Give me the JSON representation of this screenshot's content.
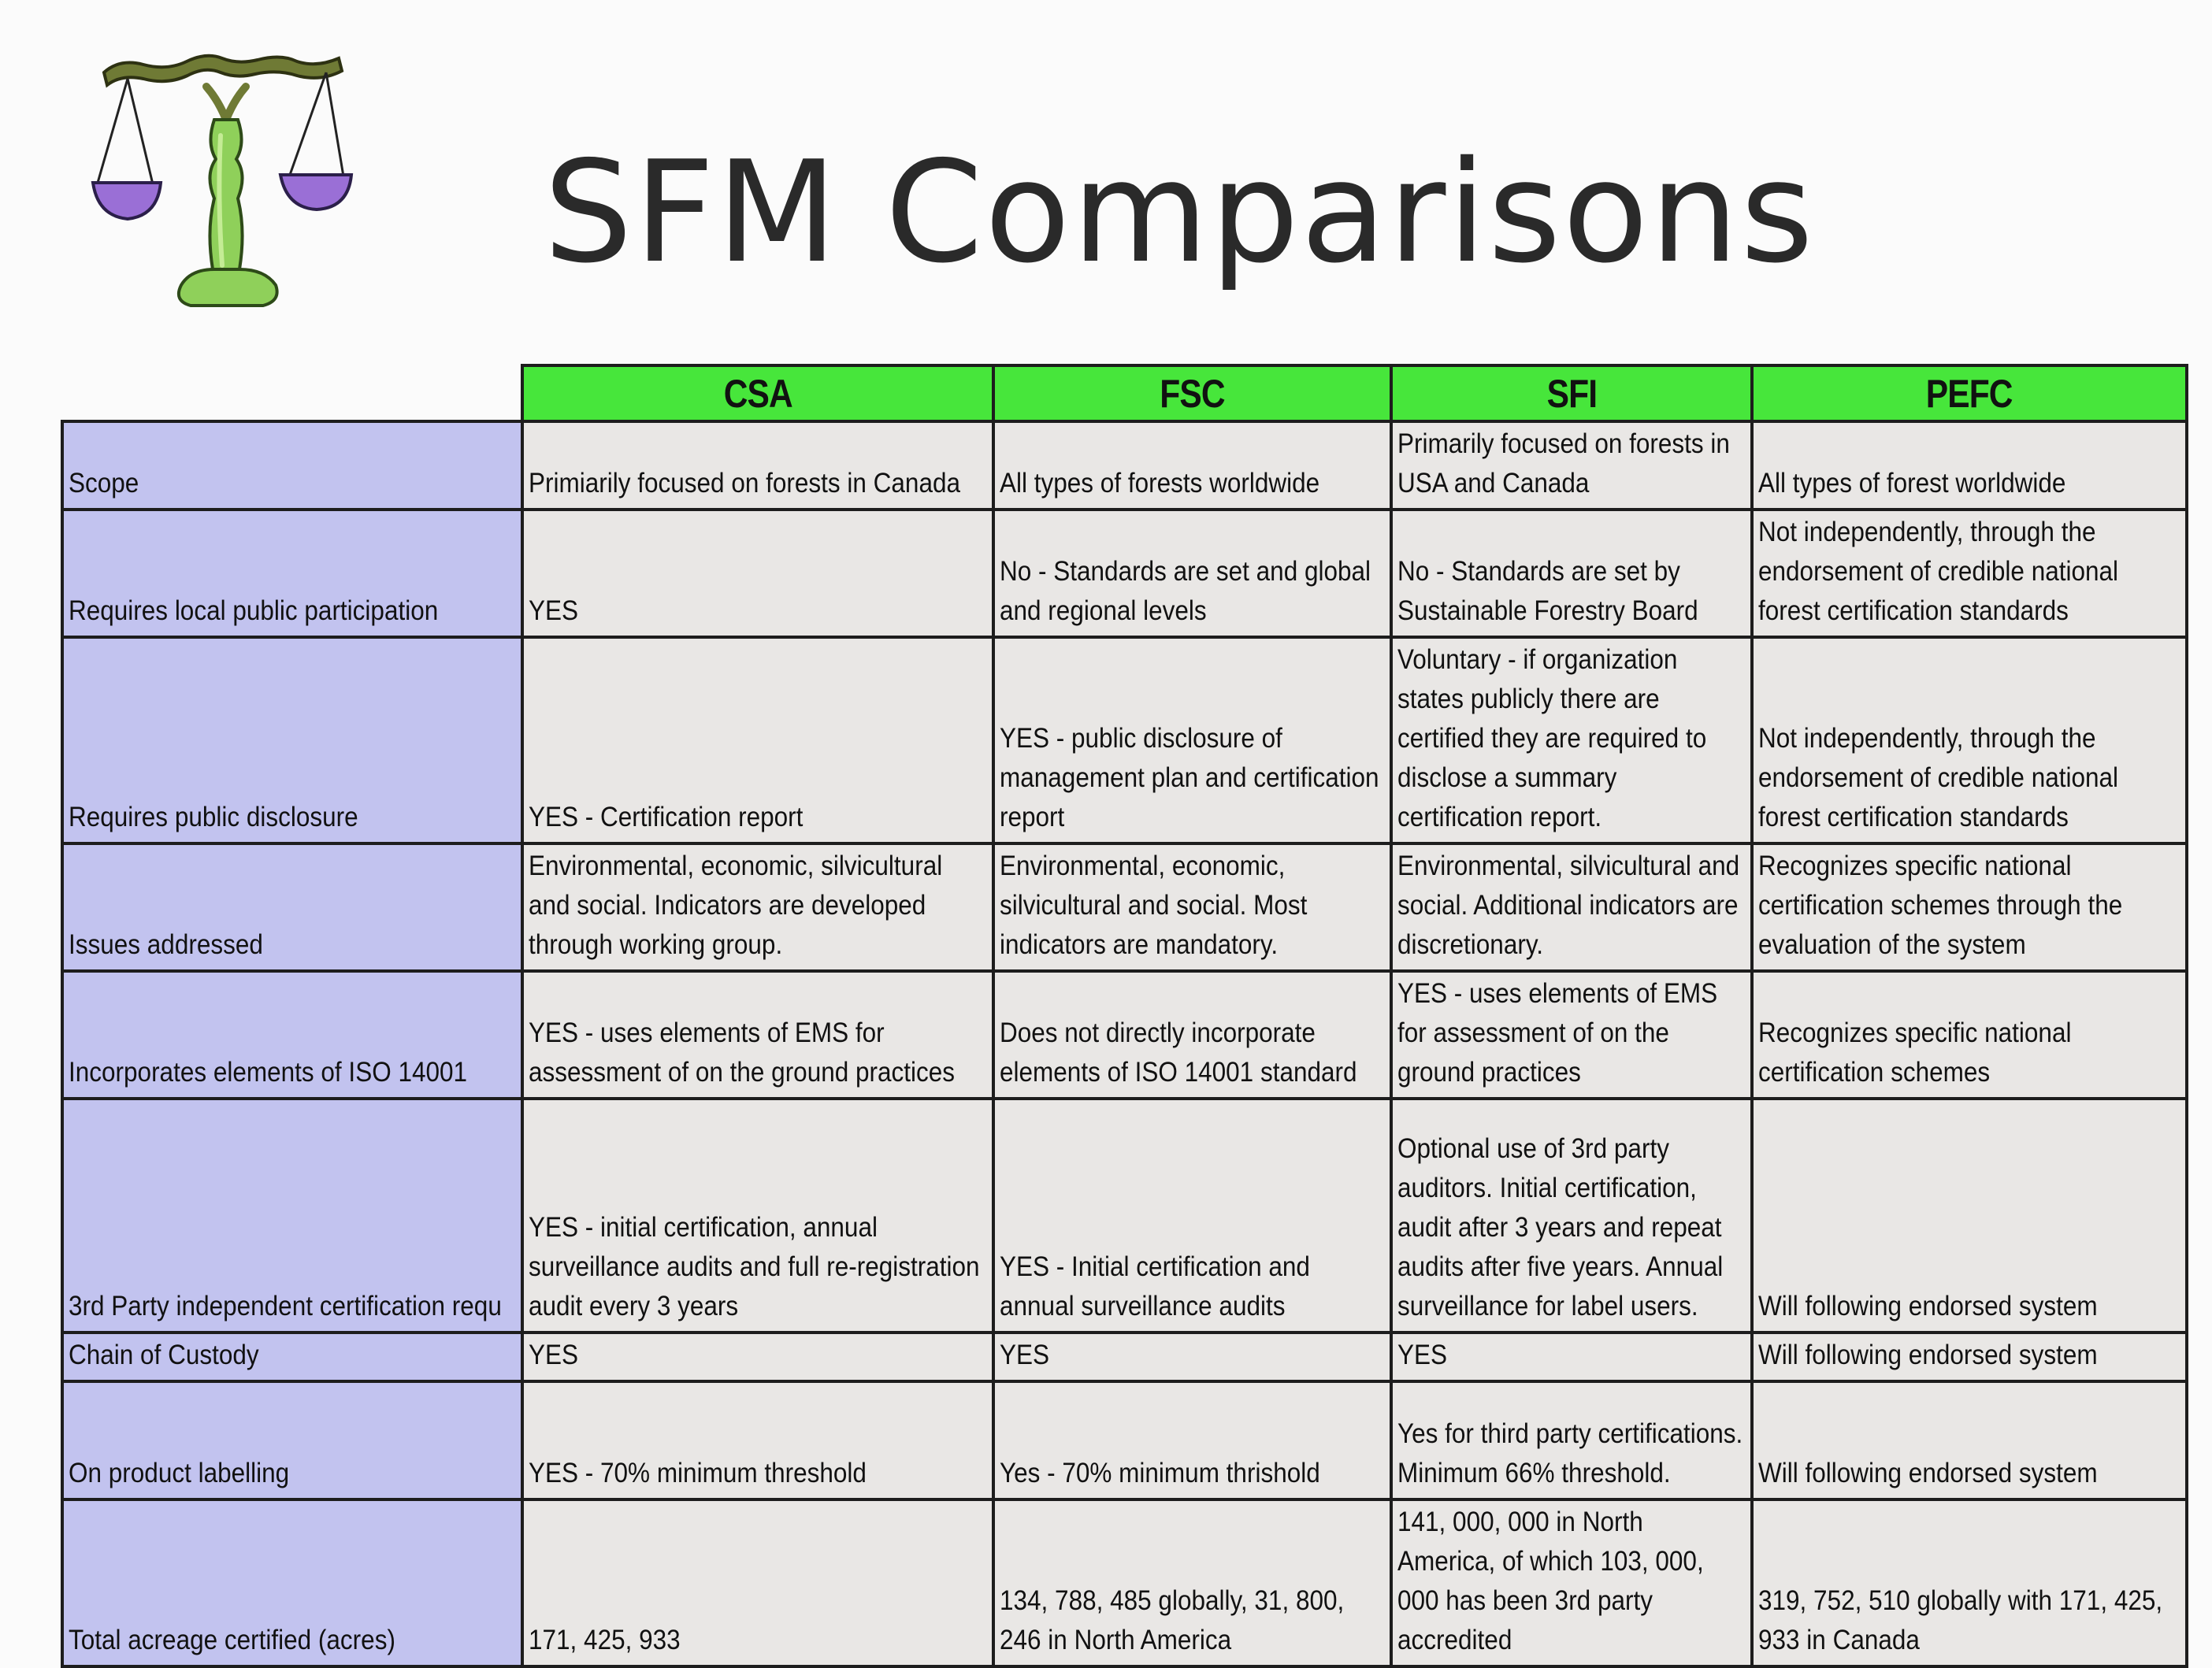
{
  "page": {
    "title": "SFM Comparisons",
    "logo_icon": "scales-of-justice-icon"
  },
  "colors": {
    "header_green": "#47e63b",
    "row_label_lavender": "#c2c3ef",
    "cell_gray": "#e9e7e5",
    "scale_purple": "#9a6fd6",
    "scale_green": "#8fd05a",
    "scale_olive": "#6f7a35"
  },
  "table": {
    "columns": [
      "CSA",
      "FSC",
      "SFI",
      "PEFC"
    ],
    "rows": [
      {
        "label": "Scope",
        "cells": [
          "Primiarily focused on forests in Canada",
          "All types of forests worldwide",
          "Primarily focused on forests in USA and Canada",
          "All types of forest worldwide"
        ]
      },
      {
        "label": "Requires local public participation",
        "cells": [
          "YES",
          "No - Standards are set and global and regional levels",
          "No - Standards are set by Sustainable Forestry Board",
          "Not independently, through the endorsement of credible national forest certification standards"
        ]
      },
      {
        "label": "Requires public disclosure",
        "cells": [
          "YES - Certification report",
          "YES - public disclosure of management plan and certification report",
          "Voluntary - if organization states publicly there are certified they are required to disclose a summary certification report.",
          "Not independently, through the endorsement of credible national forest certification standards"
        ]
      },
      {
        "label": "Issues addressed",
        "cells": [
          "Environmental, economic, silvicultural and social.  Indicators are developed through working group.",
          "Environmental, economic, silvicultural and social.  Most indicators are mandatory.",
          "Environmental, silvicultural and social.  Additional indicators are discretionary.",
          "Recognizes specific national certification schemes through the evaluation of the system"
        ]
      },
      {
        "label": "Incorporates elements of ISO 14001",
        "cells": [
          "YES - uses elements of EMS for assessment of on the ground practices",
          "Does not directly incorporate elements of ISO 14001 standard",
          "YES - uses elements of EMS for assessment of on the ground practices",
          "Recognizes specific national certification schemes"
        ]
      },
      {
        "label": "3rd Party independent certification requ",
        "cells": [
          "YES - initial certification, annual surveillance audits and full re-registration audit every 3 years",
          "YES - Initial certification and annual surveillance audits",
          "Optional use of 3rd party auditors.  Initial certification, audit after 3 years and repeat audits after five years.  Annual surveillance for label users.",
          "Will following endorsed system"
        ]
      },
      {
        "label": "Chain of Custody",
        "cells": [
          "YES",
          "YES",
          "YES",
          "Will following endorsed system"
        ]
      },
      {
        "label": "On product labelling",
        "cells": [
          "YES - 70% minimum threshold",
          "Yes - 70% minimum thrishold",
          "Yes for third party certifications. Minimum 66% threshold.",
          "Will following endorsed system"
        ]
      },
      {
        "label": "Total acreage certified (acres)",
        "cells": [
          "171, 425, 933",
          "134, 788, 485 globally, 31, 800, 246 in North America",
          "141, 000, 000 in North America, of which 103, 000, 000 has been 3rd party accredited",
          "319, 752, 510 globally with 171, 425, 933 in Canada"
        ]
      }
    ]
  }
}
